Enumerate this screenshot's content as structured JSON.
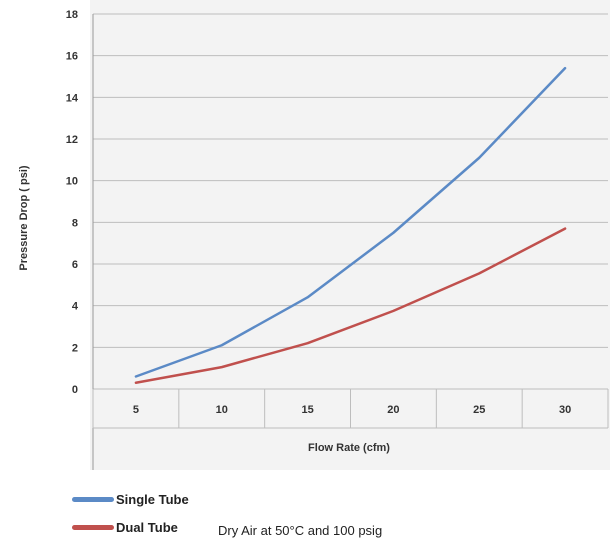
{
  "chart_data": {
    "type": "line",
    "categories": [
      "5",
      "10",
      "15",
      "20",
      "25",
      "30"
    ],
    "series": [
      {
        "name": "Single Tube",
        "color": "#5b8ac6",
        "values": [
          0.6,
          2.1,
          4.4,
          7.5,
          11.1,
          15.4
        ]
      },
      {
        "name": "Dual Tube",
        "color": "#c0504d",
        "values": [
          0.3,
          1.05,
          2.2,
          3.75,
          5.55,
          7.7
        ]
      }
    ],
    "title": "",
    "xlabel": "Flow Rate (cfm)",
    "ylabel": "Pressure Drop ( psi)",
    "ylim": [
      0,
      18
    ],
    "yticks": [
      "0",
      "2",
      "4",
      "6",
      "8",
      "10",
      "12",
      "14",
      "16",
      "18"
    ],
    "grid": "horizontal",
    "legend": "bottom-left",
    "note": "Dry Air at 50°C and 100 psig"
  }
}
